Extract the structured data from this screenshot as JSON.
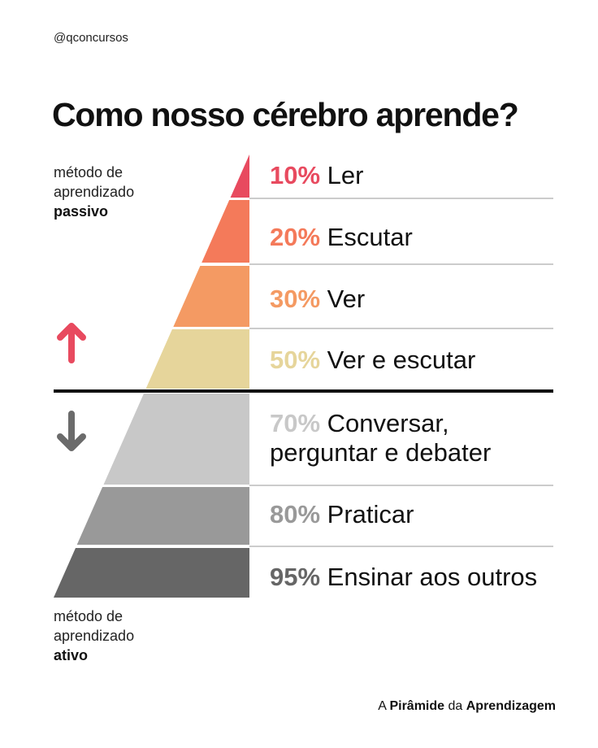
{
  "handle": "@qconcursos",
  "title": "Como nosso cérebro aprende?",
  "passive_label": {
    "line1": "método de",
    "line2": "aprendizado",
    "bold": "passivo"
  },
  "active_label": {
    "line1": "método de",
    "line2": "aprendizado",
    "bold": "ativo"
  },
  "levels": [
    {
      "percent": "10%",
      "text": "Ler",
      "color": "#e84a5f"
    },
    {
      "percent": "20%",
      "text": "Escutar",
      "color": "#f47a5a"
    },
    {
      "percent": "30%",
      "text": "Ver",
      "color": "#f49a63"
    },
    {
      "percent": "50%",
      "text": "Ver e escutar",
      "color": "#e6d59b"
    },
    {
      "percent": "70%",
      "text": "Conversar,",
      "text2": "perguntar e debater",
      "color": "#c8c8c8"
    },
    {
      "percent": "80%",
      "text": "Praticar",
      "color": "#999999"
    },
    {
      "percent": "95%",
      "text": "Ensinar aos outros",
      "color": "#666666"
    }
  ],
  "arrows": {
    "up_color": "#e84a5f",
    "down_color": "#6b6b6b",
    "up_icon": "arrow-up-icon",
    "down_icon": "arrow-down-icon"
  },
  "footer": {
    "a": "A",
    "b1": "Pirâmide",
    "da": "da",
    "b2": "Aprendizagem"
  }
}
